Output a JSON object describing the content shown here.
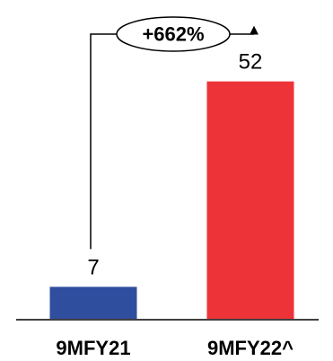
{
  "chart_data": {
    "type": "bar",
    "categories": [
      "9MFY21",
      "9MFY22^"
    ],
    "values": [
      7,
      52
    ],
    "colors": [
      "#2f4e9e",
      "#ee3338"
    ],
    "ylim": [
      0,
      60
    ],
    "grid": false,
    "annotation": {
      "text": "+662%",
      "from_category": "9MFY21",
      "to_category": "9MFY22^"
    }
  }
}
